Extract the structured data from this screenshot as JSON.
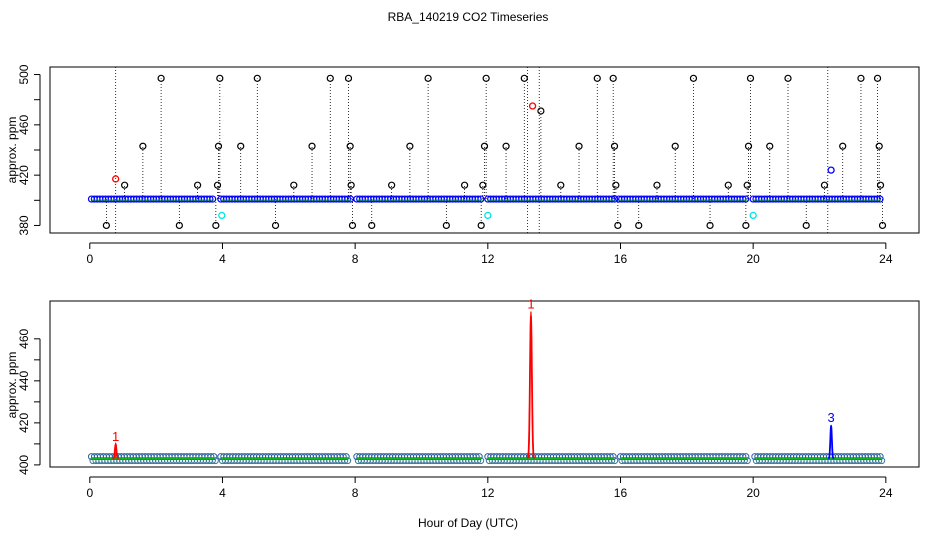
{
  "title": "RBA_140219  CO2 Timeseries",
  "xlabel": "Hour of Day (UTC)",
  "colors": {
    "black": "#000000",
    "blue": "#0000ff",
    "cyan": "#00e5e5",
    "red": "#ff0000",
    "green": "#00c000"
  },
  "chart_data": [
    {
      "type": "scatter",
      "title": "RBA_140219  CO2 Timeseries",
      "xlabel": "",
      "ylabel": "approx. ppm",
      "xlim": [
        -1.2,
        25
      ],
      "ylim": [
        374,
        506
      ],
      "xticks": [
        0,
        4,
        8,
        12,
        16,
        20,
        24
      ],
      "yticks": [
        380,
        420,
        460,
        500
      ],
      "grid": false,
      "baseline_ppm": 401,
      "series": [
        {
          "marker": "blue-circles",
          "segments": [
            [
              0.05,
              3.75
            ],
            [
              3.95,
              7.9
            ],
            [
              8.05,
              11.85
            ],
            [
              12.0,
              15.85
            ],
            [
              15.95,
              19.85
            ],
            [
              20.0,
              23.85
            ]
          ],
          "value": 401
        },
        {
          "marker": "black-circles-spikes",
          "points": [
            {
              "x": 0.5,
              "y": 380
            },
            {
              "x": 1.05,
              "y": 412
            },
            {
              "x": 1.6,
              "y": 443
            },
            {
              "x": 2.15,
              "y": 497
            },
            {
              "x": 2.7,
              "y": 380
            },
            {
              "x": 3.25,
              "y": 412
            },
            {
              "x": 3.8,
              "y": 380
            },
            {
              "x": 3.85,
              "y": 412
            },
            {
              "x": 3.88,
              "y": 443
            },
            {
              "x": 3.92,
              "y": 497
            },
            {
              "x": 4.55,
              "y": 443
            },
            {
              "x": 5.05,
              "y": 497
            },
            {
              "x": 5.6,
              "y": 380
            },
            {
              "x": 6.15,
              "y": 412
            },
            {
              "x": 6.7,
              "y": 443
            },
            {
              "x": 7.25,
              "y": 497
            },
            {
              "x": 7.8,
              "y": 497
            },
            {
              "x": 7.85,
              "y": 443
            },
            {
              "x": 7.88,
              "y": 412
            },
            {
              "x": 7.92,
              "y": 380
            },
            {
              "x": 8.5,
              "y": 380
            },
            {
              "x": 9.1,
              "y": 412
            },
            {
              "x": 9.65,
              "y": 443
            },
            {
              "x": 10.2,
              "y": 497
            },
            {
              "x": 10.75,
              "y": 380
            },
            {
              "x": 11.3,
              "y": 412
            },
            {
              "x": 11.8,
              "y": 380
            },
            {
              "x": 11.85,
              "y": 412
            },
            {
              "x": 11.9,
              "y": 443
            },
            {
              "x": 11.95,
              "y": 497
            },
            {
              "x": 12.55,
              "y": 443
            },
            {
              "x": 13.1,
              "y": 497
            },
            {
              "x": 13.6,
              "y": 471
            },
            {
              "x": 14.2,
              "y": 412
            },
            {
              "x": 14.75,
              "y": 443
            },
            {
              "x": 15.3,
              "y": 497
            },
            {
              "x": 15.78,
              "y": 497
            },
            {
              "x": 15.82,
              "y": 443
            },
            {
              "x": 15.86,
              "y": 412
            },
            {
              "x": 15.92,
              "y": 380
            },
            {
              "x": 16.55,
              "y": 380
            },
            {
              "x": 17.1,
              "y": 412
            },
            {
              "x": 17.65,
              "y": 443
            },
            {
              "x": 18.2,
              "y": 497
            },
            {
              "x": 18.7,
              "y": 380
            },
            {
              "x": 19.25,
              "y": 412
            },
            {
              "x": 19.78,
              "y": 380
            },
            {
              "x": 19.82,
              "y": 412
            },
            {
              "x": 19.86,
              "y": 443
            },
            {
              "x": 19.92,
              "y": 497
            },
            {
              "x": 20.5,
              "y": 443
            },
            {
              "x": 21.05,
              "y": 497
            },
            {
              "x": 21.6,
              "y": 380
            },
            {
              "x": 22.15,
              "y": 412
            },
            {
              "x": 22.7,
              "y": 443
            },
            {
              "x": 23.25,
              "y": 497
            },
            {
              "x": 23.75,
              "y": 497
            },
            {
              "x": 23.8,
              "y": 443
            },
            {
              "x": 23.84,
              "y": 412
            },
            {
              "x": 23.9,
              "y": 380
            }
          ]
        },
        {
          "marker": "red-circles",
          "points": [
            {
              "x": 0.78,
              "y": 417
            },
            {
              "x": 13.35,
              "y": 475
            }
          ]
        },
        {
          "marker": "cyan-circles",
          "points": [
            {
              "x": 3.98,
              "y": 388
            },
            {
              "x": 12.0,
              "y": 388
            },
            {
              "x": 20.0,
              "y": 388
            }
          ]
        },
        {
          "marker": "blue-circle",
          "points": [
            {
              "x": 22.35,
              "y": 424
            }
          ]
        }
      ],
      "vertical_lines": [
        0.78,
        13.2,
        13.55,
        22.25
      ]
    },
    {
      "type": "line",
      "xlabel": "Hour of Day (UTC)",
      "ylabel": "approx. ppm",
      "xlim": [
        -1.2,
        25
      ],
      "ylim": [
        399,
        478
      ],
      "xticks": [
        0,
        4,
        8,
        12,
        16,
        20,
        24
      ],
      "yticks": [
        400,
        420,
        440,
        460
      ],
      "grid": false,
      "baseline_ppm": 403,
      "segments": [
        [
          0.05,
          3.75
        ],
        [
          3.95,
          7.8
        ],
        [
          8.05,
          11.8
        ],
        [
          12.0,
          15.8
        ],
        [
          16.0,
          19.8
        ],
        [
          20.05,
          23.85
        ]
      ],
      "peaks": [
        {
          "label": "1",
          "x": 0.78,
          "y": 410,
          "color": "red"
        },
        {
          "label": "1",
          "x": 13.3,
          "y": 473,
          "color": "red"
        },
        {
          "label": "3",
          "x": 22.35,
          "y": 419,
          "color": "blue"
        }
      ]
    }
  ]
}
